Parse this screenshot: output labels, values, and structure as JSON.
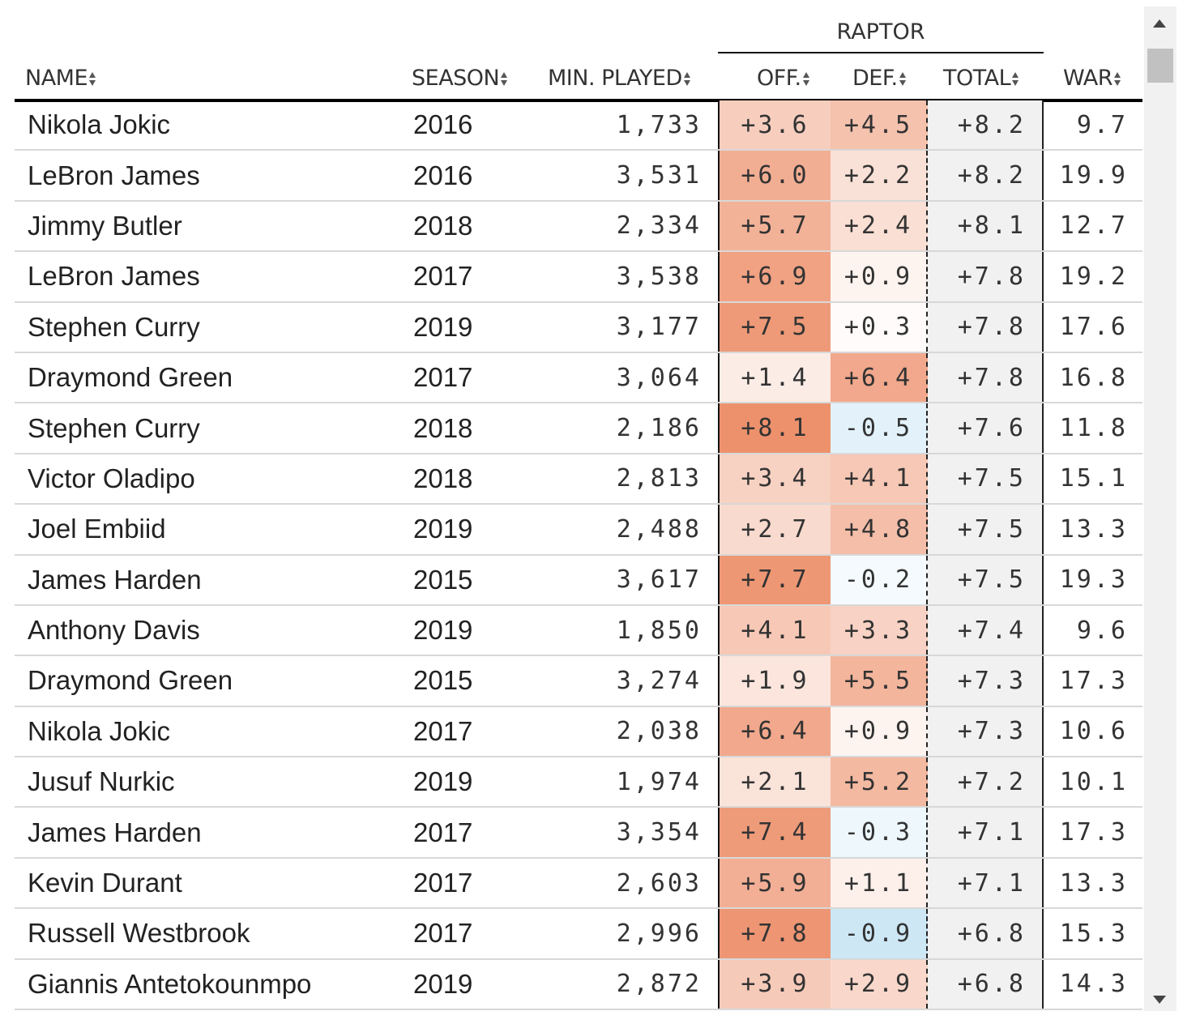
{
  "table": {
    "group_header": "RAPTOR",
    "columns": {
      "name": "NAME",
      "season": "SEASON",
      "min_played": "MIN. PLAYED",
      "off": "OFF.",
      "def": "DEF.",
      "total": "TOTAL",
      "war": "WAR"
    },
    "rows": [
      {
        "name": "Nikola Jokic",
        "season": "2016",
        "min": "1,733",
        "off": "+3.6",
        "def": "+4.5",
        "total": "+8.2",
        "war": "9.7"
      },
      {
        "name": "LeBron James",
        "season": "2016",
        "min": "3,531",
        "off": "+6.0",
        "def": "+2.2",
        "total": "+8.2",
        "war": "19.9"
      },
      {
        "name": "Jimmy Butler",
        "season": "2018",
        "min": "2,334",
        "off": "+5.7",
        "def": "+2.4",
        "total": "+8.1",
        "war": "12.7"
      },
      {
        "name": "LeBron James",
        "season": "2017",
        "min": "3,538",
        "off": "+6.9",
        "def": "+0.9",
        "total": "+7.8",
        "war": "19.2"
      },
      {
        "name": "Stephen Curry",
        "season": "2019",
        "min": "3,177",
        "off": "+7.5",
        "def": "+0.3",
        "total": "+7.8",
        "war": "17.6"
      },
      {
        "name": "Draymond Green",
        "season": "2017",
        "min": "3,064",
        "off": "+1.4",
        "def": "+6.4",
        "total": "+7.8",
        "war": "16.8"
      },
      {
        "name": "Stephen Curry",
        "season": "2018",
        "min": "2,186",
        "off": "+8.1",
        "def": "-0.5",
        "total": "+7.6",
        "war": "11.8"
      },
      {
        "name": "Victor Oladipo",
        "season": "2018",
        "min": "2,813",
        "off": "+3.4",
        "def": "+4.1",
        "total": "+7.5",
        "war": "15.1"
      },
      {
        "name": "Joel Embiid",
        "season": "2019",
        "min": "2,488",
        "off": "+2.7",
        "def": "+4.8",
        "total": "+7.5",
        "war": "13.3"
      },
      {
        "name": "James Harden",
        "season": "2015",
        "min": "3,617",
        "off": "+7.7",
        "def": "-0.2",
        "total": "+7.5",
        "war": "19.3"
      },
      {
        "name": "Anthony Davis",
        "season": "2019",
        "min": "1,850",
        "off": "+4.1",
        "def": "+3.3",
        "total": "+7.4",
        "war": "9.6"
      },
      {
        "name": "Draymond Green",
        "season": "2015",
        "min": "3,274",
        "off": "+1.9",
        "def": "+5.5",
        "total": "+7.3",
        "war": "17.3"
      },
      {
        "name": "Nikola Jokic",
        "season": "2017",
        "min": "2,038",
        "off": "+6.4",
        "def": "+0.9",
        "total": "+7.3",
        "war": "10.6"
      },
      {
        "name": "Jusuf Nurkic",
        "season": "2019",
        "min": "1,974",
        "off": "+2.1",
        "def": "+5.2",
        "total": "+7.2",
        "war": "10.1"
      },
      {
        "name": "James Harden",
        "season": "2017",
        "min": "3,354",
        "off": "+7.4",
        "def": "-0.3",
        "total": "+7.1",
        "war": "17.3"
      },
      {
        "name": "Kevin Durant",
        "season": "2017",
        "min": "2,603",
        "off": "+5.9",
        "def": "+1.1",
        "total": "+7.1",
        "war": "13.3"
      },
      {
        "name": "Russell Westbrook",
        "season": "2017",
        "min": "2,996",
        "off": "+7.8",
        "def": "-0.9",
        "total": "+6.8",
        "war": "15.3"
      },
      {
        "name": "Giannis Antetokounmpo",
        "season": "2019",
        "min": "2,872",
        "off": "+3.9",
        "def": "+2.9",
        "total": "+6.8",
        "war": "14.3"
      }
    ]
  },
  "colors": {
    "positive": "#ec8c66",
    "negative": "#c7e4f4",
    "total_bg": "#f1f1f1"
  }
}
